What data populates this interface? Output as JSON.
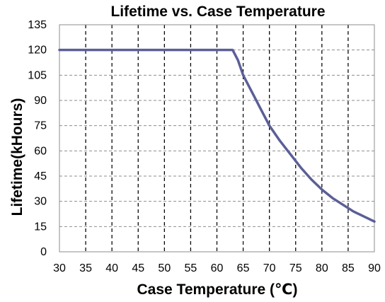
{
  "chart_data": {
    "type": "line",
    "title": "Lifetime vs. Case Temperature",
    "xlabel": "Case Temperature (℃)",
    "ylabel": "Lifetime(kHours)",
    "xlim": [
      30,
      90
    ],
    "ylim": [
      0,
      135
    ],
    "x_ticks": [
      30,
      35,
      40,
      45,
      50,
      55,
      60,
      65,
      70,
      75,
      80,
      85,
      90
    ],
    "y_ticks": [
      0,
      15,
      30,
      45,
      60,
      75,
      90,
      105,
      120,
      135
    ],
    "grid": {
      "x": "dashed",
      "y": "dashed"
    },
    "legend": "none",
    "series": [
      {
        "color": "#5b5f97",
        "points": [
          {
            "x": 30,
            "y": 120
          },
          {
            "x": 63,
            "y": 120
          },
          {
            "x": 64,
            "y": 114
          },
          {
            "x": 65,
            "y": 105
          },
          {
            "x": 66,
            "y": 99
          },
          {
            "x": 67,
            "y": 93
          },
          {
            "x": 68,
            "y": 87
          },
          {
            "x": 69,
            "y": 81
          },
          {
            "x": 70,
            "y": 75
          },
          {
            "x": 72,
            "y": 66
          },
          {
            "x": 74,
            "y": 58
          },
          {
            "x": 76,
            "y": 50
          },
          {
            "x": 78,
            "y": 43
          },
          {
            "x": 80,
            "y": 37
          },
          {
            "x": 82,
            "y": 32
          },
          {
            "x": 84,
            "y": 28
          },
          {
            "x": 86,
            "y": 24
          },
          {
            "x": 88,
            "y": 21
          },
          {
            "x": 90,
            "y": 18
          }
        ]
      }
    ]
  }
}
